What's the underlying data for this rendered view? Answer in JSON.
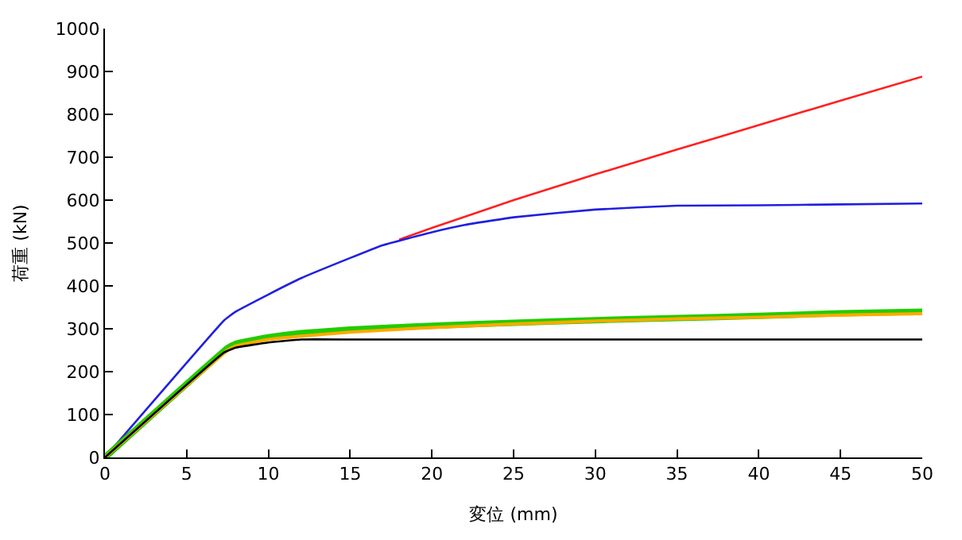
{
  "chart_data": {
    "type": "line",
    "xlabel": "変位 (mm)",
    "ylabel": "荷重 (kN)",
    "xlim": [
      0,
      50
    ],
    "ylim": [
      0,
      1000
    ],
    "xticks": [
      0,
      5,
      10,
      15,
      20,
      25,
      30,
      35,
      40,
      45,
      50
    ],
    "yticks": [
      0,
      100,
      200,
      300,
      400,
      500,
      600,
      700,
      800,
      900,
      1000
    ],
    "marker": "none",
    "line_style": "solid",
    "series": [
      {
        "color": "#ff2020",
        "x": [
          18,
          20,
          25,
          30,
          35,
          40,
          45,
          50
        ],
        "values": [
          508,
          535,
          600,
          660,
          718,
          775,
          832,
          888
        ]
      },
      {
        "color": "#2020e0",
        "x": [
          0,
          7.3,
          8,
          10,
          12,
          15,
          17,
          20,
          22,
          25,
          30,
          35,
          40,
          45,
          50
        ],
        "values": [
          0,
          320,
          340,
          380,
          418,
          465,
          495,
          525,
          542,
          560,
          578,
          587,
          588,
          590,
          592
        ]
      },
      {
        "color": "#22cc00",
        "x": [
          0,
          7.5,
          8,
          10,
          12,
          15,
          20,
          25,
          30,
          35,
          40,
          45,
          50
        ],
        "values": [
          0,
          255,
          265,
          280,
          290,
          298,
          307,
          314,
          320,
          325,
          330,
          336,
          340
        ]
      },
      {
        "color": "#ffaa00",
        "x": [
          0,
          7.5,
          8,
          10,
          12,
          15,
          20,
          25,
          30,
          35,
          40,
          45,
          50
        ],
        "values": [
          0,
          250,
          260,
          275,
          283,
          292,
          303,
          311,
          318,
          323,
          327,
          332,
          335
        ]
      },
      {
        "color": "#000000",
        "x": [
          0,
          7.3,
          8,
          10,
          12,
          15,
          20,
          30,
          40,
          50
        ],
        "values": [
          0,
          245,
          256,
          268,
          275,
          275,
          275,
          275,
          275,
          275
        ]
      }
    ]
  }
}
